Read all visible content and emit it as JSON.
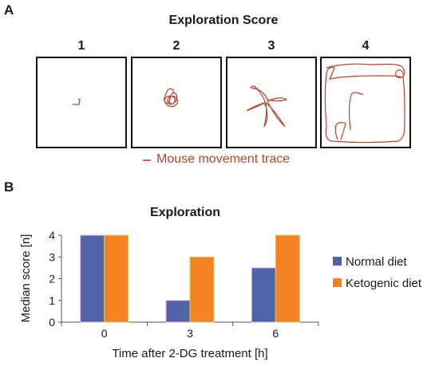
{
  "panel_a": {
    "letter": "A",
    "title": "Exploration Score",
    "box_labels": [
      "1",
      "2",
      "3",
      "4"
    ],
    "trace_legend": "Mouse movement trace",
    "trace_color": "#b5442a"
  },
  "panel_b": {
    "letter": "B"
  },
  "chart_data": {
    "type": "bar",
    "title": "Exploration",
    "xlabel": "Time after 2-DG treatment [h]",
    "ylabel": "Median score [n]",
    "categories": [
      "0",
      "3",
      "6"
    ],
    "ylim": [
      0,
      4
    ],
    "yticks": [
      "0",
      "1",
      "2",
      "3",
      "4"
    ],
    "grid": false,
    "legend_position": "right",
    "series": [
      {
        "name": "Normal diet",
        "values": [
          4,
          1,
          2.5
        ],
        "color": "#5163a8"
      },
      {
        "name": "Ketogenic diet",
        "values": [
          4,
          3,
          4
        ],
        "color": "#f58220"
      }
    ]
  }
}
